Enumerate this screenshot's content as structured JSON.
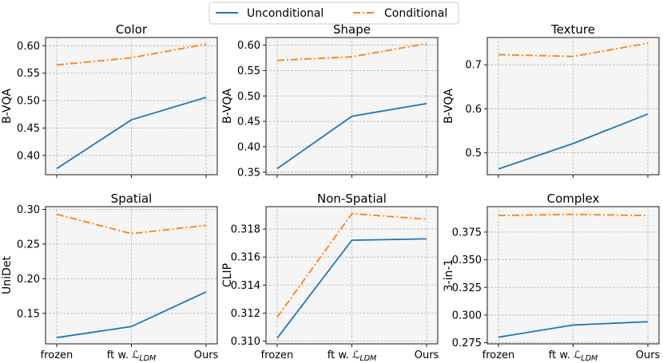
{
  "legend": {
    "entries": [
      {
        "label": "Unconditional",
        "color": "#1f77b4",
        "style": "solid"
      },
      {
        "label": "Conditional",
        "color": "#ff7f0e",
        "style": "dashdot"
      }
    ]
  },
  "chart_data": [
    {
      "type": "line",
      "title": "Color",
      "ylabel": "B-VQA",
      "xlabel": "",
      "categories": [
        "frozen",
        "ft w. LLDM",
        "Ours"
      ],
      "ylim": [
        0.365,
        0.615
      ],
      "yticks": [
        0.4,
        0.45,
        0.5,
        0.55,
        0.6
      ],
      "ytick_labels": [
        "0.40",
        "0.45",
        "0.50",
        "0.55",
        "0.60"
      ],
      "grid": true,
      "series": [
        {
          "name": "Unconditional",
          "values": [
            0.376,
            0.465,
            0.506
          ]
        },
        {
          "name": "Conditional",
          "values": [
            0.565,
            0.578,
            0.603
          ]
        }
      ]
    },
    {
      "type": "line",
      "title": "Shape",
      "ylabel": "B-VQA",
      "xlabel": "",
      "categories": [
        "frozen",
        "ft w. LLDM",
        "Ours"
      ],
      "ylim": [
        0.345,
        0.615
      ],
      "yticks": [
        0.35,
        0.4,
        0.45,
        0.5,
        0.55,
        0.6
      ],
      "ytick_labels": [
        "0.35",
        "0.40",
        "0.45",
        "0.50",
        "0.55",
        "0.60"
      ],
      "grid": true,
      "series": [
        {
          "name": "Unconditional",
          "values": [
            0.357,
            0.46,
            0.485
          ]
        },
        {
          "name": "Conditional",
          "values": [
            0.57,
            0.577,
            0.603
          ]
        }
      ]
    },
    {
      "type": "line",
      "title": "Texture",
      "ylabel": "B-VQA",
      "xlabel": "",
      "categories": [
        "frozen",
        "ft w. LLDM",
        "Ours"
      ],
      "ylim": [
        0.45,
        0.762
      ],
      "yticks": [
        0.5,
        0.6,
        0.7
      ],
      "ytick_labels": [
        "0.5",
        "0.6",
        "0.7"
      ],
      "grid": true,
      "series": [
        {
          "name": "Unconditional",
          "values": [
            0.463,
            0.521,
            0.588
          ]
        },
        {
          "name": "Conditional",
          "values": [
            0.723,
            0.719,
            0.749
          ]
        }
      ]
    },
    {
      "type": "line",
      "title": "Spatial",
      "ylabel": "UniDet",
      "xlabel": "",
      "categories": [
        "frozen",
        "ft w. LLDM",
        "Ours"
      ],
      "ylim": [
        0.106,
        0.304
      ],
      "yticks": [
        0.15,
        0.2,
        0.25,
        0.3
      ],
      "ytick_labels": [
        "0.15",
        "0.20",
        "0.25",
        "0.30"
      ],
      "grid": true,
      "series": [
        {
          "name": "Unconditional",
          "values": [
            0.115,
            0.131,
            0.181
          ]
        },
        {
          "name": "Conditional",
          "values": [
            0.293,
            0.265,
            0.277
          ]
        }
      ]
    },
    {
      "type": "line",
      "title": "Non-Spatial",
      "ylabel": "CLIP",
      "xlabel": "",
      "categories": [
        "frozen",
        "ft w. LLDM",
        "Ours"
      ],
      "ylim": [
        0.3098,
        0.3196
      ],
      "yticks": [
        0.31,
        0.312,
        0.314,
        0.316,
        0.318
      ],
      "ytick_labels": [
        "0.310",
        "0.312",
        "0.314",
        "0.316",
        "0.318"
      ],
      "grid": true,
      "series": [
        {
          "name": "Unconditional",
          "values": [
            0.3102,
            0.3172,
            0.3173
          ]
        },
        {
          "name": "Conditional",
          "values": [
            0.3117,
            0.3191,
            0.3187
          ]
        }
      ]
    },
    {
      "type": "line",
      "title": "Complex",
      "ylabel": "3-in-1",
      "xlabel": "",
      "categories": [
        "frozen",
        "ft w. LLDM",
        "Ours"
      ],
      "ylim": [
        0.274,
        0.398
      ],
      "yticks": [
        0.275,
        0.3,
        0.325,
        0.35,
        0.375
      ],
      "ytick_labels": [
        "0.275",
        "0.300",
        "0.325",
        "0.350",
        "0.375"
      ],
      "grid": true,
      "series": [
        {
          "name": "Unconditional",
          "values": [
            0.28,
            0.291,
            0.294
          ]
        },
        {
          "name": "Conditional",
          "values": [
            0.39,
            0.391,
            0.39
          ]
        }
      ]
    }
  ],
  "xtick_parts": {
    "frozen": "frozen",
    "middle_prefix": "ft w.",
    "middle_symbol": "ℒ",
    "middle_subscript": "LDM",
    "ours": "Ours"
  }
}
